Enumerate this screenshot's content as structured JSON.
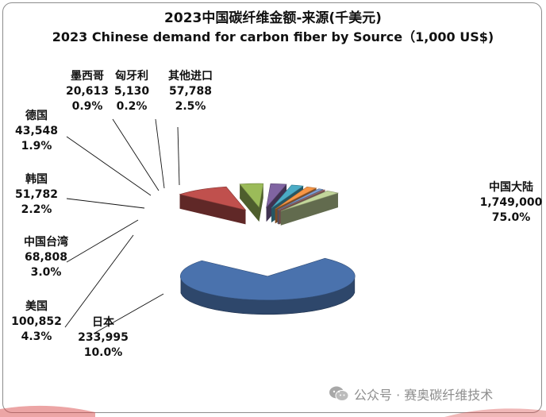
{
  "chart_data": {
    "type": "pie",
    "title": "2023中国碳纤维金额-来源(千美元)",
    "subtitle": "2023 Chinese demand for carbon fiber by Source（1,000 US$)",
    "slices": [
      {
        "name": "中国大陆",
        "value_label": "1,749,000",
        "value": 1749000,
        "percent_label": "75.0%",
        "percent": 75.0,
        "color": "#4a72ad"
      },
      {
        "name": "日本",
        "value_label": "233,995",
        "value": 233995,
        "percent_label": "10.0%",
        "percent": 10.0,
        "color": "#c0504d"
      },
      {
        "name": "美国",
        "value_label": "100,852",
        "value": 100852,
        "percent_label": "4.3%",
        "percent": 4.3,
        "color": "#9bbb59"
      },
      {
        "name": "中国台湾",
        "value_label": "68,808",
        "value": 68808,
        "percent_label": "3.0%",
        "percent": 3.0,
        "color": "#8064a2"
      },
      {
        "name": "韩国",
        "value_label": "51,782",
        "value": 51782,
        "percent_label": "2.2%",
        "percent": 2.2,
        "color": "#4bacc6"
      },
      {
        "name": "德国",
        "value_label": "43,548",
        "value": 43548,
        "percent_label": "1.9%",
        "percent": 1.9,
        "color": "#f79646"
      },
      {
        "name": "墨西哥",
        "value_label": "20,613",
        "value": 20613,
        "percent_label": "0.9%",
        "percent": 0.9,
        "color": "#7f9fd3"
      },
      {
        "name": "匈牙利",
        "value_label": "5,130",
        "value": 5130,
        "percent_label": "0.2%",
        "percent": 0.2,
        "color": "#d99694"
      },
      {
        "name": "其他进口",
        "value_label": "57,788",
        "value": 57788,
        "percent_label": "2.5%",
        "percent": 2.5,
        "color": "#c3d69b"
      }
    ]
  },
  "watermark": {
    "text": "公众号 · 赛奥碳纤维技术",
    "icon": "wechat-icon"
  }
}
